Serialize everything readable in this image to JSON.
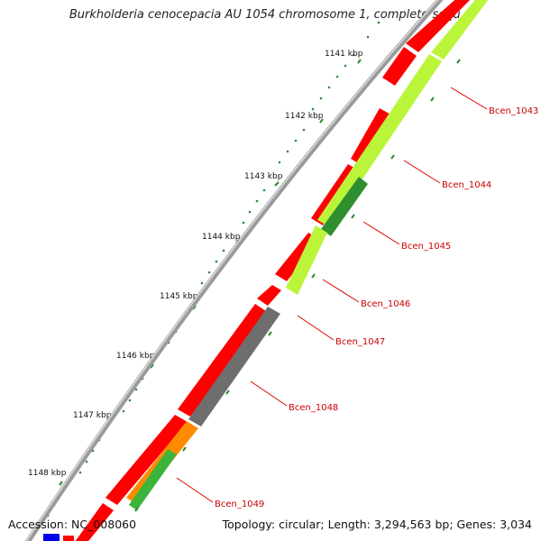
{
  "title": "Burkholderia cenocepacia AU 1054 chromosome 1, complete sequ...",
  "footer": {
    "accession": "Accession: NC_008060",
    "topology": "Topology: circular; Length: 3,294,563 bp; Genes: 3,034"
  },
  "ruler_labels": [
    "1141 kbp",
    "1142 kbp",
    "1143 kbp",
    "1144 kbp",
    "1145 kbp",
    "1146 kbp",
    "1147 kbp",
    "1148 kbp"
  ],
  "gene_labels": [
    "Bcen_1043",
    "Bcen_1044",
    "Bcen_1045",
    "Bcen_1046",
    "Bcen_1047",
    "Bcen_1048",
    "Bcen_1049"
  ],
  "colors": {
    "backbone": "#9a9a9a",
    "cds_forward": "#ff0000",
    "cds_reverse_lime": "#bbf53a",
    "cds_reverse_green": "#2f8f2f",
    "cds_reverse_gray": "#6e6e6e",
    "cds_reverse_orange": "#ff8c00",
    "tick": "#2e8b2e",
    "label_line": "#dd0000"
  }
}
